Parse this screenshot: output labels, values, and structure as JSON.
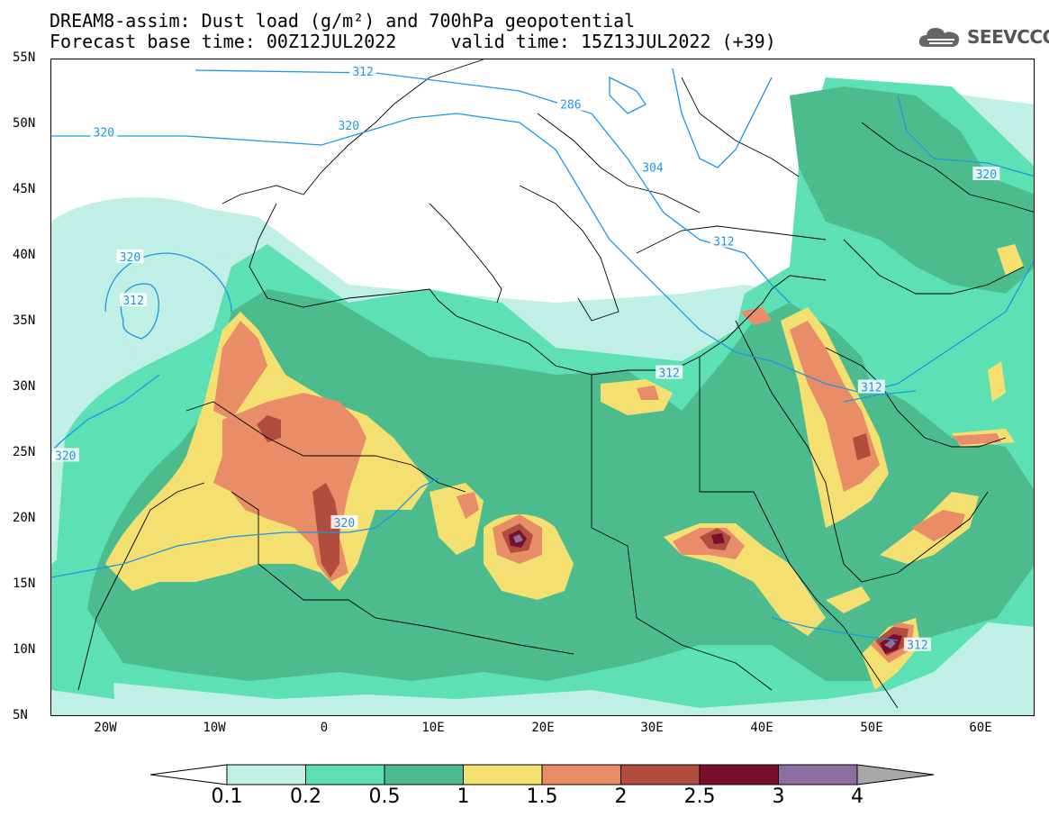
{
  "title": {
    "line1": "DREAM8-assim: Dust load (g/m²) and 700hPa geopotential",
    "line2": "Forecast base time: 00Z12JUL2022     valid time: 15Z13JUL2022 (+39)"
  },
  "logo": {
    "text": "SEEVCCC",
    "icon": "cloud-icon"
  },
  "axes": {
    "lat_labels": [
      "55N",
      "50N",
      "45N",
      "40N",
      "35N",
      "30N",
      "25N",
      "20N",
      "15N",
      "10N",
      "5N"
    ],
    "lon_labels": [
      "20W",
      "10W",
      "0",
      "10E",
      "20E",
      "30E",
      "40E",
      "50E",
      "60E"
    ],
    "lat_range": [
      5,
      55
    ],
    "lon_range": [
      -25,
      65
    ]
  },
  "contours": {
    "labels": [
      {
        "text": "312",
        "lon": 3.5,
        "lat": 54.1
      },
      {
        "text": "286",
        "lon": 22.5,
        "lat": 51.6
      },
      {
        "text": "320",
        "lon": -20.2,
        "lat": 49.5
      },
      {
        "text": "320",
        "lon": 2.2,
        "lat": 50.0
      },
      {
        "text": "304",
        "lon": 30.0,
        "lat": 46.8
      },
      {
        "text": "320",
        "lon": 60.5,
        "lat": 46.3
      },
      {
        "text": "312",
        "lon": 36.5,
        "lat": 41.2
      },
      {
        "text": "320",
        "lon": -17.8,
        "lat": 40.0
      },
      {
        "text": "312",
        "lon": -17.5,
        "lat": 36.7
      },
      {
        "text": "312",
        "lon": 31.5,
        "lat": 31.2
      },
      {
        "text": "312",
        "lon": 50.0,
        "lat": 30.1
      },
      {
        "text": "320",
        "lon": -23.7,
        "lat": 24.9
      },
      {
        "text": "320",
        "lon": 1.8,
        "lat": 19.8
      },
      {
        "text": "312",
        "lon": 54.2,
        "lat": 10.5
      }
    ]
  },
  "colorbar": {
    "labels": [
      "0.1",
      "0.2",
      "0.5",
      "1",
      "1.5",
      "2",
      "2.5",
      "3",
      "4"
    ],
    "colors": [
      "#bfefe5",
      "#5ce0b4",
      "#4cbc8f",
      "#f4e071",
      "#e98c68",
      "#b04d3c",
      "#7a0f2c",
      "#8e6da0"
    ],
    "under_color": "#ffffff",
    "over_color": "#a8a8a8"
  },
  "colors": {
    "contour_line": "#1e96e6",
    "coastline": "#000000"
  }
}
